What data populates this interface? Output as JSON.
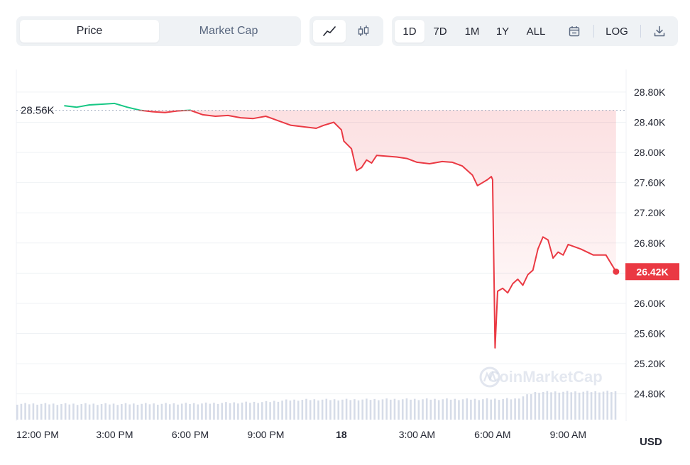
{
  "toolbar": {
    "metric_tabs": [
      {
        "label": "Price",
        "active": true
      },
      {
        "label": "Market Cap",
        "active": false
      }
    ],
    "chart_types": [
      {
        "icon": "line-chart-icon",
        "active": true
      },
      {
        "icon": "candlestick-icon",
        "active": false
      }
    ],
    "ranges": [
      {
        "label": "1D",
        "active": true
      },
      {
        "label": "7D",
        "active": false
      },
      {
        "label": "1M",
        "active": false
      },
      {
        "label": "1Y",
        "active": false
      },
      {
        "label": "ALL",
        "active": false
      }
    ],
    "calendar_icon": "calendar-icon",
    "log_label": "LOG",
    "download_icon": "download-icon"
  },
  "watermark": "CoinMarketCap",
  "currency_label": "USD",
  "colors": {
    "up": "#16c784",
    "down": "#ea3943",
    "volume": "#cfd6e4",
    "grid": "#eff2f5"
  },
  "chart_data": {
    "type": "line",
    "open_value_label": "28.56K",
    "current_value_label": "26.42K",
    "open_value": 28560,
    "current_value": 26420,
    "ylim": [
      24440,
      29100
    ],
    "y_ticks": [
      24800,
      25200,
      25600,
      26000,
      26400,
      26800,
      27200,
      27600,
      28000,
      28400,
      28800
    ],
    "y_tick_labels": [
      "24.80K",
      "25.20K",
      "25.60K",
      "26.00K",
      "26.40K",
      "26.80K",
      "27.20K",
      "27.60K",
      "28.00K",
      "28.40K",
      "28.80K"
    ],
    "x_tick_labels": [
      "12:00 PM",
      "3:00 PM",
      "6:00 PM",
      "9:00 PM",
      "18",
      "3:00 AM",
      "6:00 AM",
      "9:00 AM"
    ],
    "x_tick_hours": [
      0,
      3,
      6,
      9,
      12,
      15,
      18,
      21
    ],
    "xlim_hours": [
      -0.9,
      23.3
    ],
    "bold_x_tick": "18",
    "grid": true,
    "series": [
      {
        "x_hours": [
          1.0,
          1.5,
          2.0,
          2.5,
          3.0,
          3.5,
          4.0,
          4.5,
          5.0,
          5.5,
          6.0,
          6.5,
          7.0,
          7.5,
          8.0,
          8.5,
          9.0,
          9.5,
          10.0,
          10.5,
          11.0,
          11.3,
          11.7,
          12.0,
          12.1,
          12.4,
          12.6,
          12.8,
          13.0,
          13.2,
          13.4,
          13.8,
          14.2,
          14.6,
          15.0,
          15.5,
          16.0,
          16.4,
          16.8,
          17.2,
          17.4,
          17.6,
          17.8,
          17.95,
          18.0,
          18.1,
          18.2,
          18.4,
          18.6,
          18.8,
          19.0,
          19.2,
          19.4,
          19.6,
          19.8,
          20.0,
          20.2,
          20.4,
          20.6,
          20.8,
          21.0,
          21.5,
          22.0,
          22.5,
          22.9
        ],
        "values": [
          28620,
          28600,
          28630,
          28640,
          28650,
          28600,
          28560,
          28540,
          28530,
          28550,
          28560,
          28500,
          28480,
          28490,
          28460,
          28450,
          28480,
          28420,
          28360,
          28340,
          28320,
          28360,
          28400,
          28300,
          28150,
          28050,
          27760,
          27800,
          27900,
          27860,
          27960,
          27950,
          27940,
          27920,
          27870,
          27850,
          27880,
          27870,
          27820,
          27700,
          27560,
          27600,
          27640,
          27680,
          27640,
          25410,
          26160,
          26200,
          26140,
          26260,
          26320,
          26240,
          26380,
          26440,
          26720,
          26880,
          26840,
          26600,
          26680,
          26640,
          26780,
          26720,
          26640,
          26640,
          26420
        ]
      }
    ],
    "volume": {
      "relative_levels": [
        0.78,
        0.78,
        0.77,
        0.77,
        0.77,
        0.77,
        0.78,
        0.78,
        0.79,
        0.8,
        0.83,
        0.85,
        0.88,
        0.97,
        1.0,
        1.0,
        1.0,
        1.01,
        1.02,
        1.02,
        1.02,
        1.02,
        1.02,
        1.03,
        1.04,
        1.4,
        1.41,
        1.41,
        1.42,
        1.42
      ]
    }
  }
}
